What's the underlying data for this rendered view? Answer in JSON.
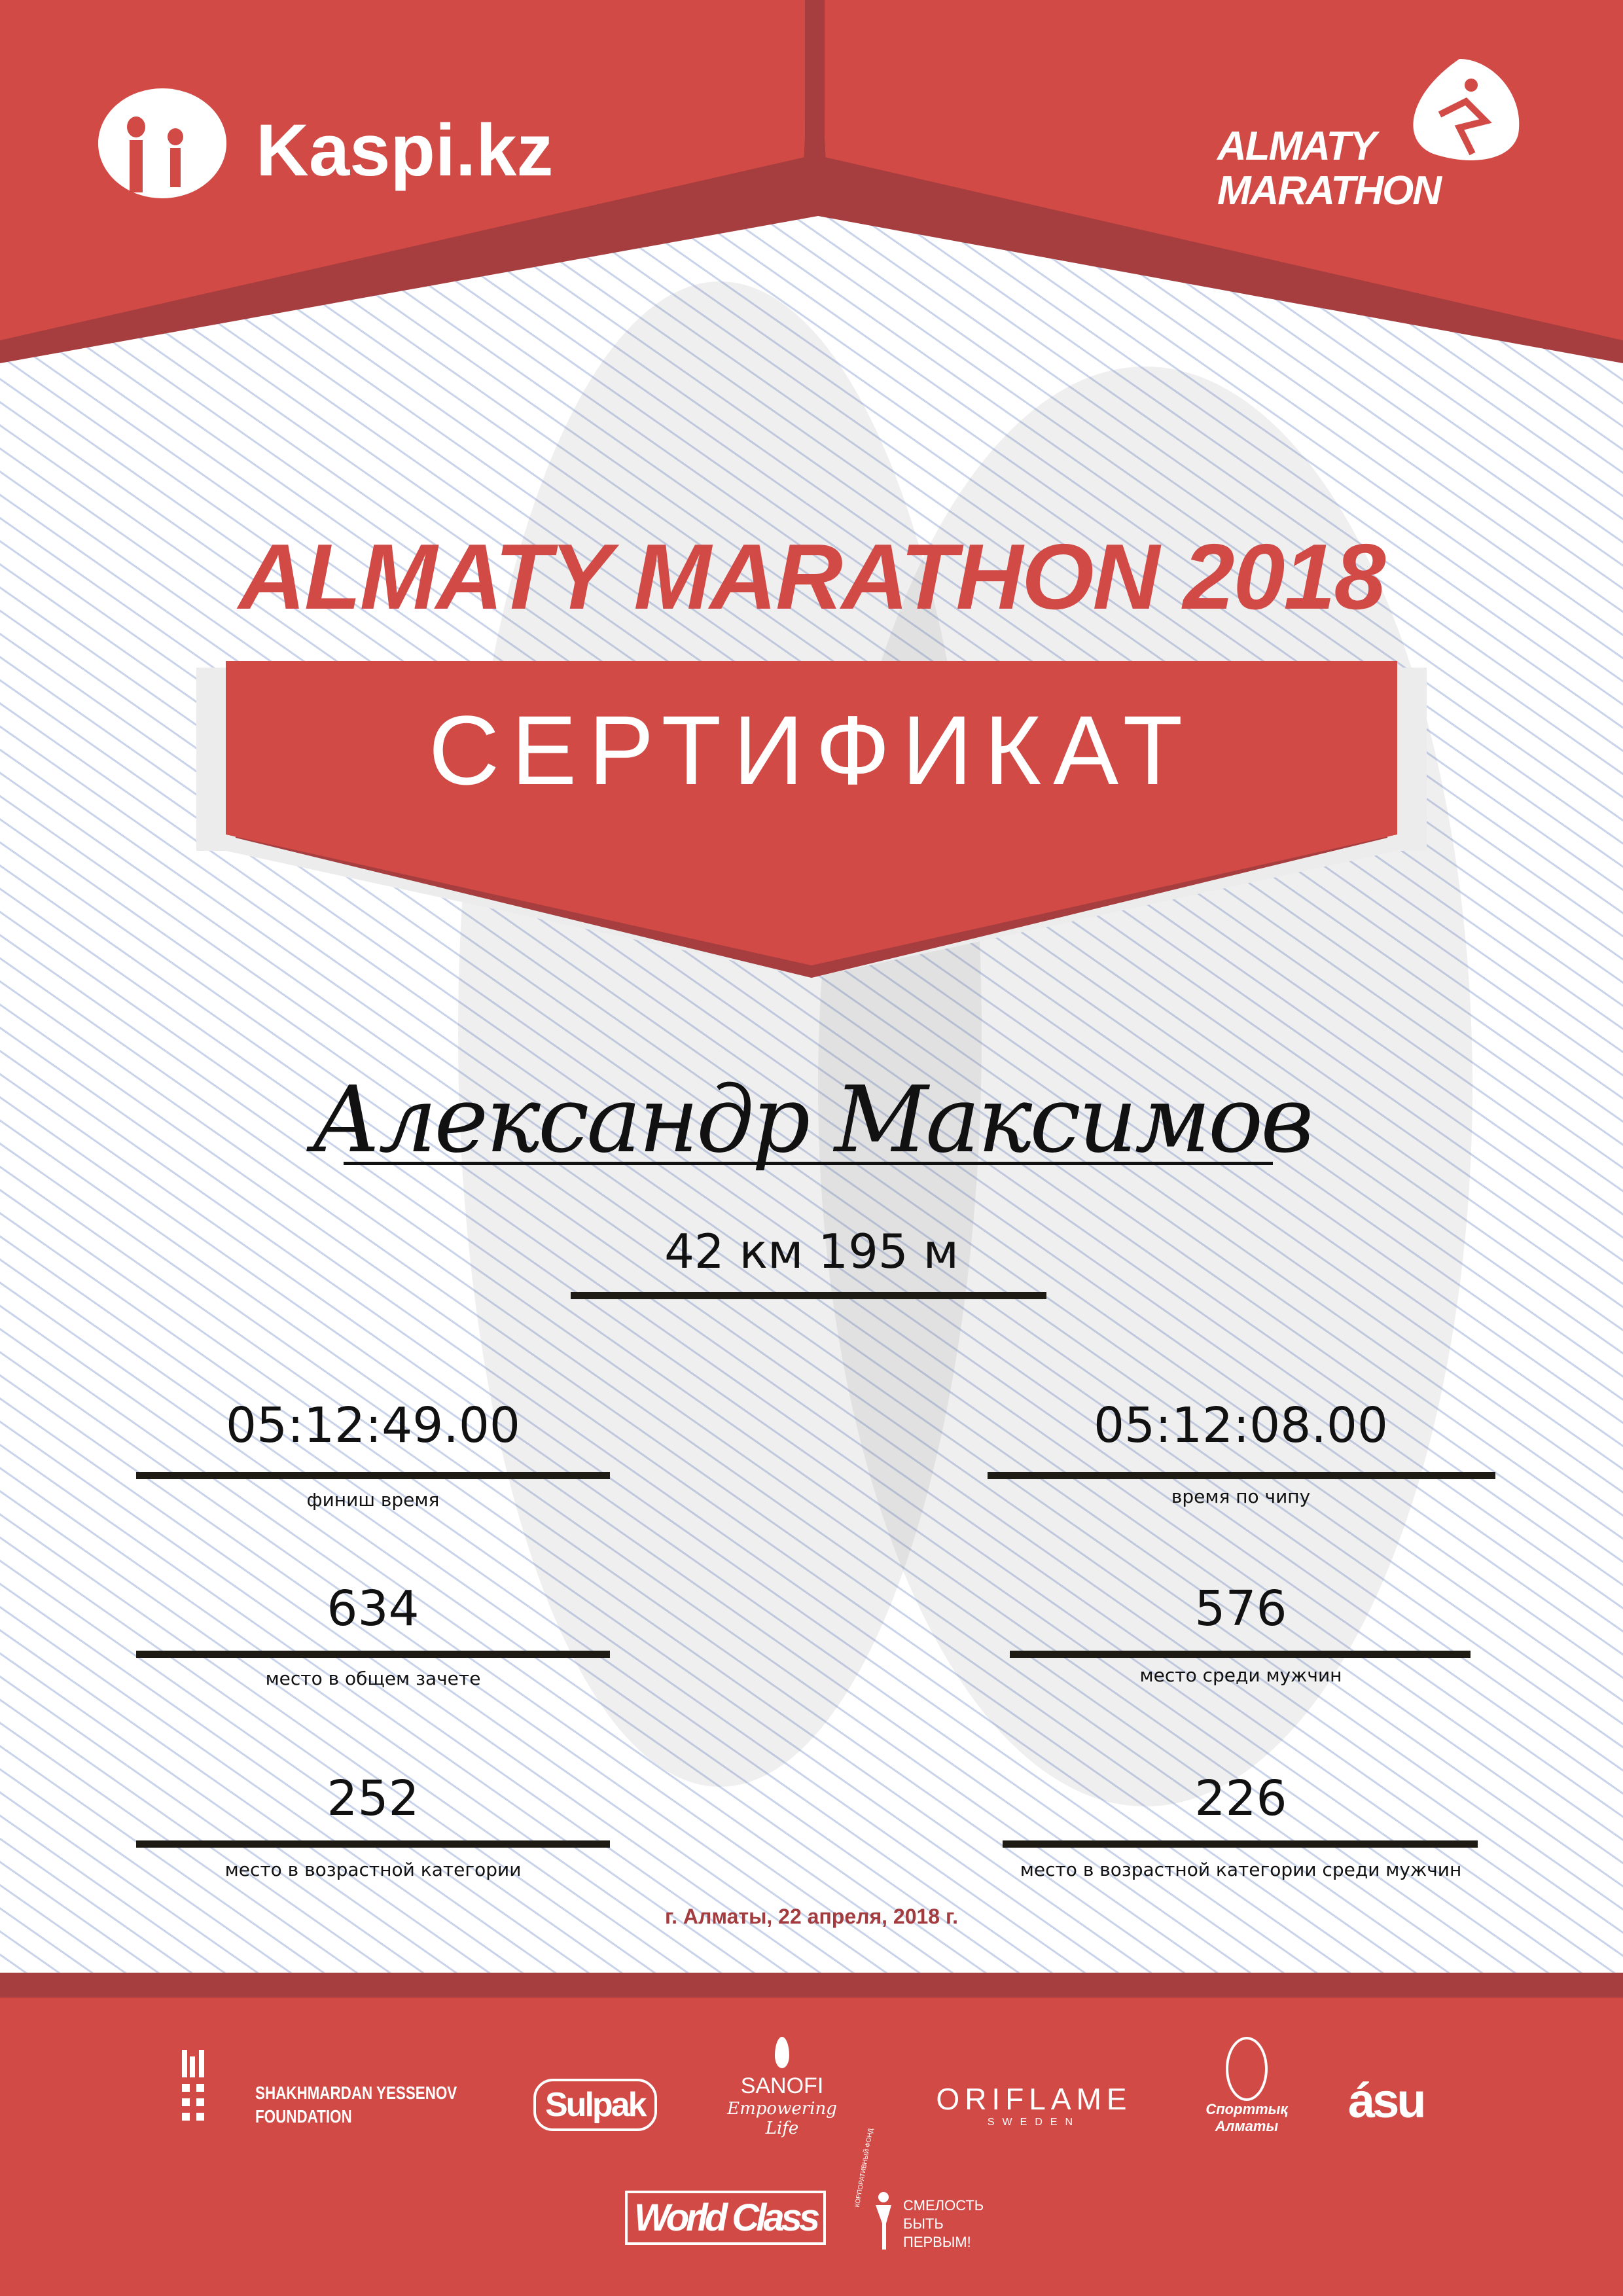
{
  "colors": {
    "brand_red": "#d24a45",
    "dark_red": "#a63d3f",
    "text": "#111111"
  },
  "header": {
    "kaspi_logo": {
      "icon": "kaspi-figures-icon",
      "text": "Kaspi.kz"
    },
    "marathon_logo": {
      "icon": "runner-icon",
      "line1": "ALMATY",
      "line2": "MARATHON"
    }
  },
  "title": "ALMATY MARATHON 2018",
  "certificate_label": "СЕРТИФИКАТ",
  "participant_name": "Александр Максимов",
  "distance": "42 км 195 м",
  "results": [
    {
      "value": "05:12:49.00",
      "label": "финиш время"
    },
    {
      "value": "05:12:08.00",
      "label": "время по чипу"
    },
    {
      "value": "634",
      "label": "место в общем зачете"
    },
    {
      "value": "576",
      "label": "место среди мужчин"
    },
    {
      "value": "252",
      "label": "место в возрастной категории"
    },
    {
      "value": "226",
      "label": "место в возрастной категории среди мужчин"
    }
  ],
  "date_place": "г. Алматы, 22 апреля, 2018 г.",
  "sponsors": {
    "yessenov": {
      "line1": "SHAKHMARDAN YESSENOV",
      "line2": "FOUNDATION"
    },
    "sulpak": "Sulpak",
    "sanofi": {
      "name": "SANOFI",
      "tagline": "Empowering Life"
    },
    "oriflame": {
      "name": "ORIFLAME",
      "sub": "SWEDEN"
    },
    "sport_almaty": {
      "line1": "Спорттық",
      "line2": "Алматы"
    },
    "asu": "ásu",
    "worldclass": "World Class",
    "fund": {
      "arc": "КОРПОРАТИВНЫЙ ФОНД",
      "line1": "СМЕЛОСТЬ",
      "line2": "БЫТЬ",
      "line3": "ПЕРВЫМ!"
    }
  }
}
